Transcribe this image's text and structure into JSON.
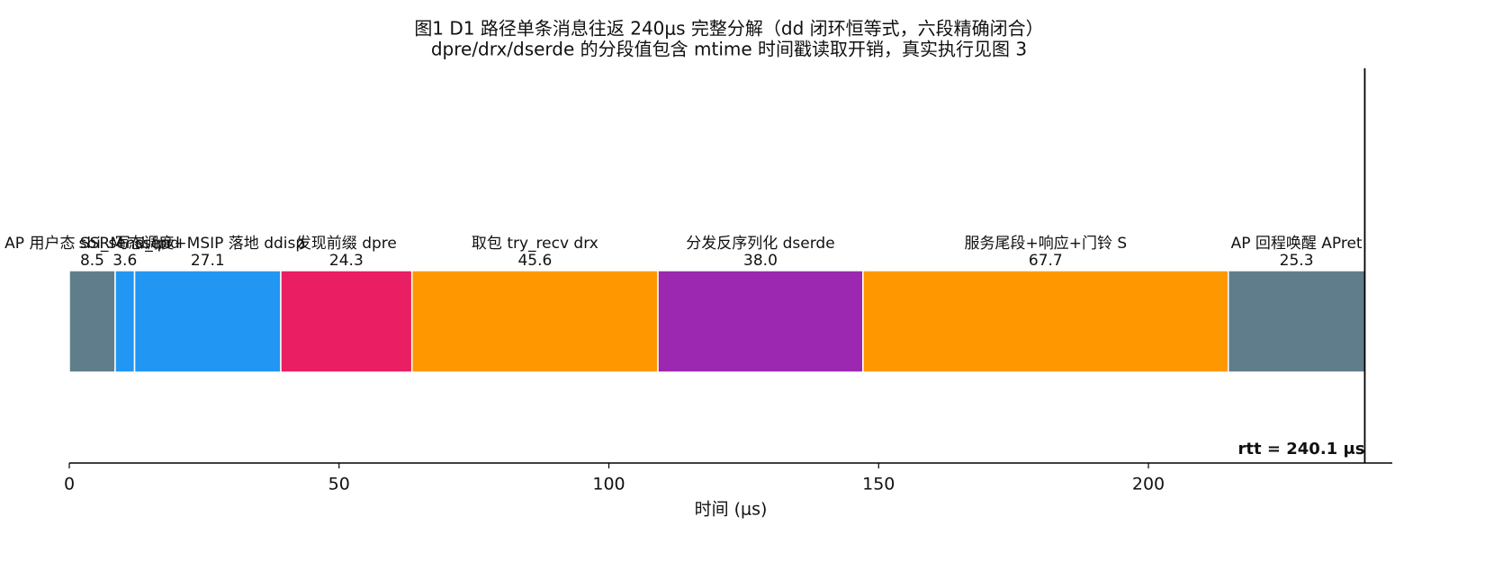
{
  "chart_data": {
    "type": "stacked_barh",
    "title": "图1  D1 路径单条消息往返 240μs 完整分解（dd 闭环恒等式，六段精确闭合）",
    "subtitle": "dpre/drx/dserde 的分段值包含 mtime 时间戳读取开销，真实执行见图 3",
    "xlabel": "时间 (μs)",
    "categories": [
      "AP 用户态 SSR 写 ssend",
      "sbi_send_ipi",
      "M 态调度+MSIP 落地 ddisp",
      "发现前缀 dpre",
      "取包 try_recv drx",
      "分发反序列化 dserde",
      "服务尾段+响应+门铃 S",
      "AP 回程唤醒 APret"
    ],
    "values": [
      8.5,
      3.6,
      27.1,
      24.3,
      45.6,
      38.0,
      67.7,
      25.3
    ],
    "value_labels": [
      "8.5",
      "3.6",
      "27.1",
      "24.3",
      "45.6",
      "38.0",
      "67.7",
      "25.3"
    ],
    "colors": [
      "#607d8b",
      "#2196f3",
      "#2196f3",
      "#e91e63",
      "#ff9800",
      "#9c27b0",
      "#ff9800",
      "#607d8b"
    ],
    "xlim": [
      0,
      245.2
    ],
    "xticks": [
      0,
      50,
      100,
      150,
      200
    ],
    "rtt": 240.1,
    "rtt_label": "rtt = 240.1 μs"
  }
}
